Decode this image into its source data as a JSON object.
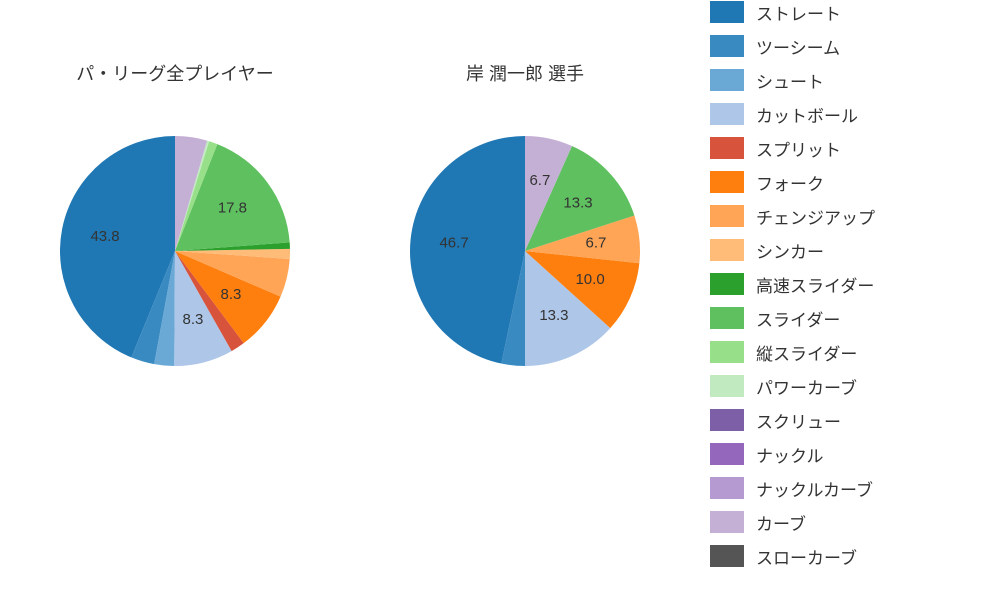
{
  "legend": {
    "items": [
      {
        "label": "ストレート",
        "color": "#1f77b4"
      },
      {
        "label": "ツーシーム",
        "color": "#3a8ac2"
      },
      {
        "label": "シュート",
        "color": "#6aa8d6"
      },
      {
        "label": "カットボール",
        "color": "#aec7e8"
      },
      {
        "label": "スプリット",
        "color": "#d8533c"
      },
      {
        "label": "フォーク",
        "color": "#ff7f0e"
      },
      {
        "label": "チェンジアップ",
        "color": "#ffa555"
      },
      {
        "label": "シンカー",
        "color": "#ffbb78"
      },
      {
        "label": "高速スライダー",
        "color": "#2ca02c"
      },
      {
        "label": "スライダー",
        "color": "#5fc05f"
      },
      {
        "label": "縦スライダー",
        "color": "#98df8a"
      },
      {
        "label": "パワーカーブ",
        "color": "#c1eac1"
      },
      {
        "label": "スクリュー",
        "color": "#7d5fa8"
      },
      {
        "label": "ナックル",
        "color": "#9467bd"
      },
      {
        "label": "ナックルカーブ",
        "color": "#b49ad1"
      },
      {
        "label": "カーブ",
        "color": "#c5b0d5"
      },
      {
        "label": "スローカーブ",
        "color": "#555555"
      }
    ]
  },
  "charts": [
    {
      "title": "パ・リーグ全プレイヤー",
      "radius": 115,
      "title_fontsize": 18,
      "label_fontsize": 15,
      "label_min_threshold": 5.0,
      "slices": [
        {
          "value": 43.8,
          "color": "#1f77b4",
          "label": "43.8"
        },
        {
          "value": 3.3,
          "color": "#3a8ac2",
          "label": ""
        },
        {
          "value": 2.8,
          "color": "#6aa8d6",
          "label": ""
        },
        {
          "value": 8.3,
          "color": "#aec7e8",
          "label": "8.3"
        },
        {
          "value": 2.0,
          "color": "#d8533c",
          "label": ""
        },
        {
          "value": 8.3,
          "color": "#ff7f0e",
          "label": "8.3"
        },
        {
          "value": 5.4,
          "color": "#ffa555",
          "label": ""
        },
        {
          "value": 1.4,
          "color": "#ffbb78",
          "label": ""
        },
        {
          "value": 0.9,
          "color": "#2ca02c",
          "label": ""
        },
        {
          "value": 17.8,
          "color": "#5fc05f",
          "label": "17.8"
        },
        {
          "value": 1.2,
          "color": "#98df8a",
          "label": ""
        },
        {
          "value": 0.3,
          "color": "#c1eac1",
          "label": ""
        },
        {
          "value": 4.5,
          "color": "#c5b0d5",
          "label": ""
        }
      ]
    },
    {
      "title": "岸 潤一郎  選手",
      "radius": 115,
      "title_fontsize": 18,
      "label_fontsize": 15,
      "label_min_threshold": 5.0,
      "slices": [
        {
          "value": 46.7,
          "color": "#1f77b4",
          "label": "46.7"
        },
        {
          "value": 3.3,
          "color": "#3a8ac2",
          "label": ""
        },
        {
          "value": 13.3,
          "color": "#aec7e8",
          "label": "13.3"
        },
        {
          "value": 10.0,
          "color": "#ff7f0e",
          "label": "10.0"
        },
        {
          "value": 6.7,
          "color": "#ffa555",
          "label": "6.7"
        },
        {
          "value": 13.3,
          "color": "#5fc05f",
          "label": "13.3"
        },
        {
          "value": 6.7,
          "color": "#c5b0d5",
          "label": "6.7"
        }
      ]
    }
  ]
}
